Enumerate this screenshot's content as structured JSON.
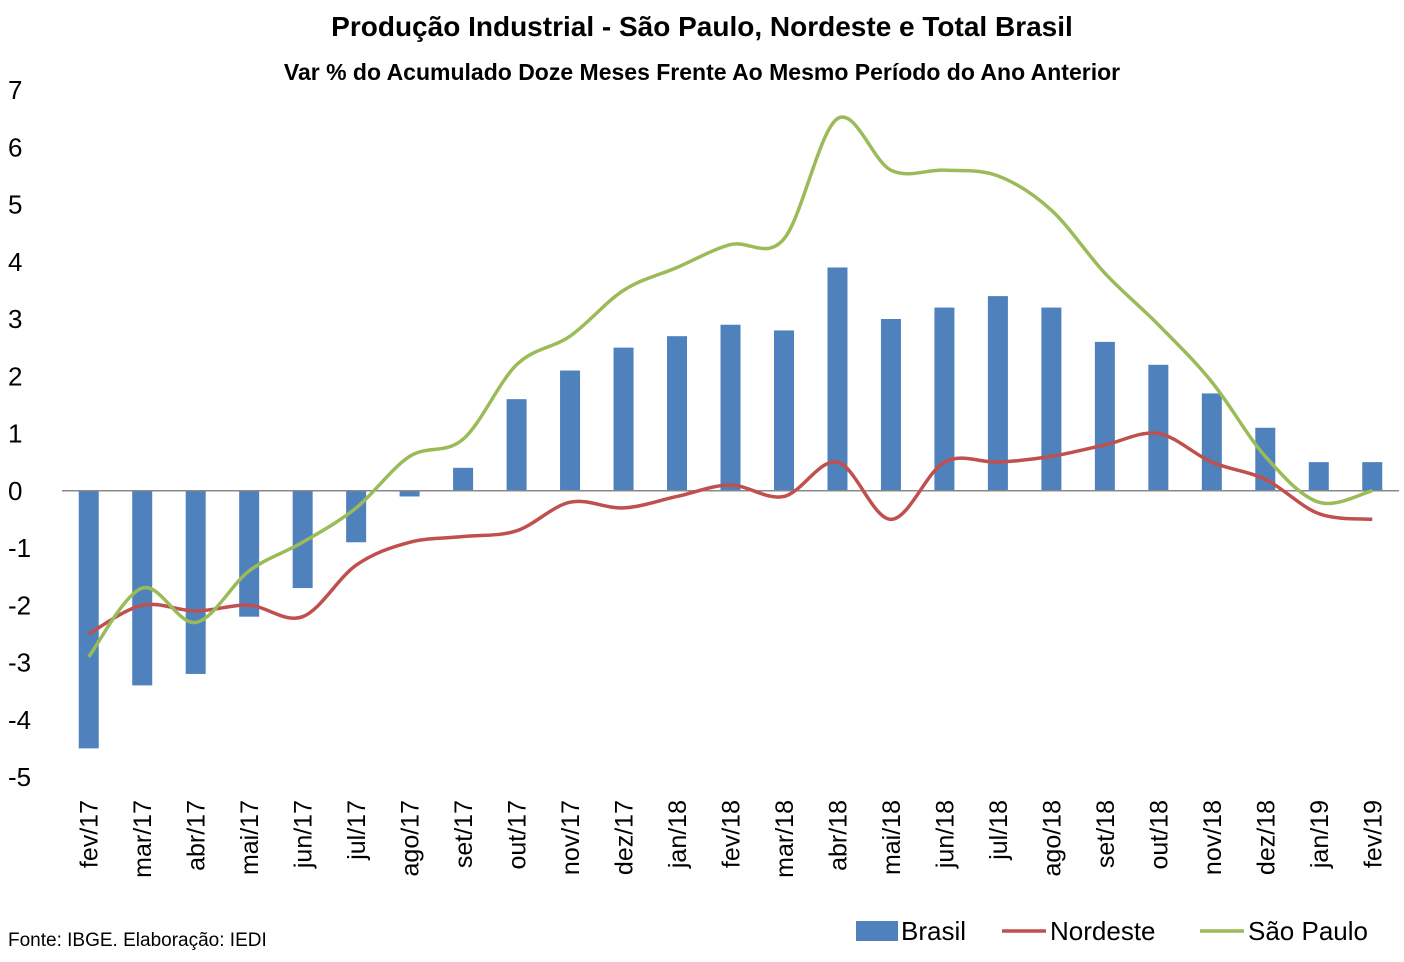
{
  "chart_data": {
    "type": "bar-line",
    "title": "Produção Industrial - São Paulo, Nordeste e Total Brasil",
    "subtitle": "Var % do Acumulado Doze Meses Frente Ao Mesmo Período do Ano Anterior",
    "source": "Fonte: IBGE. Elaboração: IEDI",
    "categories": [
      "fev/17",
      "mar/17",
      "abr/17",
      "mai/17",
      "jun/17",
      "jul/17",
      "ago/17",
      "set/17",
      "out/17",
      "nov/17",
      "dez/17",
      "jan/18",
      "fev/18",
      "mar/18",
      "abr/18",
      "mai/18",
      "jun/18",
      "jul/18",
      "ago/18",
      "set/18",
      "out/18",
      "nov/18",
      "dez/18",
      "jan/19",
      "fev/19"
    ],
    "series": [
      {
        "name": "Brasil",
        "kind": "bar",
        "color": "#4f81bd",
        "values": [
          -4.5,
          -3.4,
          -3.2,
          -2.2,
          -1.7,
          -0.9,
          -0.1,
          0.4,
          1.6,
          2.1,
          2.5,
          2.7,
          2.9,
          2.8,
          3.9,
          3.0,
          3.2,
          3.4,
          3.2,
          2.6,
          2.2,
          1.7,
          1.1,
          0.5,
          0.5
        ]
      },
      {
        "name": "Nordeste",
        "kind": "line",
        "color": "#c0504d",
        "values": [
          -2.5,
          -2.0,
          -2.1,
          -2.0,
          -2.2,
          -1.3,
          -0.9,
          -0.8,
          -0.7,
          -0.2,
          -0.3,
          -0.1,
          0.1,
          -0.1,
          0.5,
          -0.5,
          0.5,
          0.5,
          0.6,
          0.8,
          1.0,
          0.5,
          0.2,
          -0.4,
          -0.5
        ]
      },
      {
        "name": "São Paulo",
        "kind": "line",
        "color": "#9bbb59",
        "values": [
          -2.9,
          -1.7,
          -2.3,
          -1.4,
          -0.9,
          -0.3,
          0.6,
          0.9,
          2.2,
          2.7,
          3.5,
          3.9,
          4.3,
          4.4,
          6.5,
          5.6,
          5.6,
          5.5,
          4.9,
          3.8,
          2.9,
          1.9,
          0.6,
          -0.2,
          0.0
        ]
      }
    ],
    "ylim": [
      -5,
      7
    ],
    "yticks": [
      -5,
      -4,
      -3,
      -2,
      -1,
      0,
      1,
      2,
      3,
      4,
      5,
      6,
      7
    ]
  }
}
